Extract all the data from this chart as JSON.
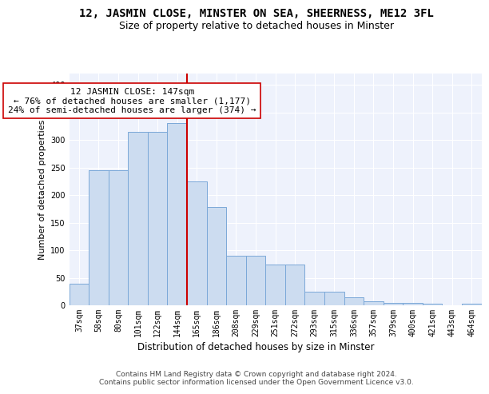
{
  "title": "12, JASMIN CLOSE, MINSTER ON SEA, SHEERNESS, ME12 3FL",
  "subtitle": "Size of property relative to detached houses in Minster",
  "xlabel": "Distribution of detached houses by size in Minster",
  "ylabel": "Number of detached properties",
  "categories": [
    "37sqm",
    "58sqm",
    "80sqm",
    "101sqm",
    "122sqm",
    "144sqm",
    "165sqm",
    "186sqm",
    "208sqm",
    "229sqm",
    "251sqm",
    "272sqm",
    "293sqm",
    "315sqm",
    "336sqm",
    "357sqm",
    "379sqm",
    "400sqm",
    "421sqm",
    "443sqm",
    "464sqm"
  ],
  "bar_values": [
    40,
    245,
    245,
    315,
    315,
    330,
    225,
    178,
    90,
    90,
    75,
    75,
    25,
    25,
    15,
    8,
    5,
    5,
    3,
    0,
    3
  ],
  "vline_x": 5.5,
  "annotation_text": "12 JASMIN CLOSE: 147sqm\n← 76% of detached houses are smaller (1,177)\n24% of semi-detached houses are larger (374) →",
  "bar_color": "#ccdcf0",
  "bar_edgecolor": "#7aa8d8",
  "vline_color": "#cc0000",
  "annotation_boxcolor": "#ffffff",
  "annotation_edgecolor": "#cc0000",
  "ylim": [
    0,
    420
  ],
  "background_color": "#eef2fc",
  "grid_color": "#ffffff",
  "footer_text": "Contains HM Land Registry data © Crown copyright and database right 2024.\nContains public sector information licensed under the Open Government Licence v3.0.",
  "title_fontsize": 10,
  "subtitle_fontsize": 9,
  "xlabel_fontsize": 8.5,
  "ylabel_fontsize": 8,
  "annotation_fontsize": 8,
  "tick_fontsize": 7,
  "footer_fontsize": 6.5
}
